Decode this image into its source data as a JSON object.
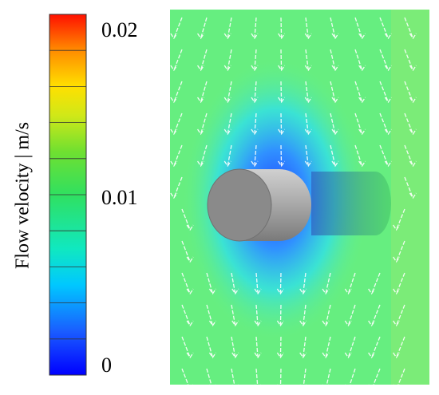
{
  "colorbar": {
    "label": "Flow velocity | m/s",
    "range": [
      0,
      0.02
    ],
    "ticks": [
      0,
      0.01,
      0.02
    ]
  }
}
